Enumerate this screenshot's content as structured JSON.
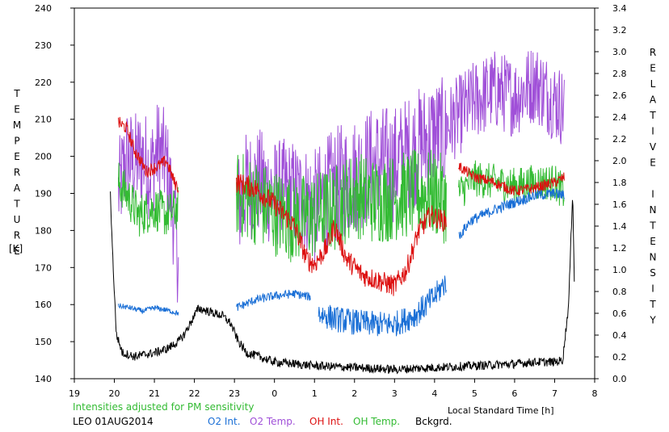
{
  "chart_data": {
    "type": "line",
    "station": "LEO 01AUG2014",
    "note": "Intensities adjusted for PM sensitivity",
    "xlabel": "Local Standard Time [h]",
    "ylabel_left": "TEMPERATURE",
    "ylabel_left_unit": "[K]",
    "ylabel_right": "RELATIVE INTENSITY",
    "x_ticks": [
      "19",
      "20",
      "21",
      "22",
      "23",
      "0",
      "1",
      "2",
      "3",
      "4",
      "5",
      "6",
      "7",
      "8"
    ],
    "x_range": [
      "19:00",
      "08:00"
    ],
    "ylim_left": [
      140,
      240
    ],
    "y_ticks_left": [
      140,
      150,
      160,
      170,
      180,
      190,
      200,
      210,
      220,
      230,
      240
    ],
    "ylim_right": [
      0.0,
      3.4
    ],
    "y_ticks_right": [
      "0.0",
      "0.2",
      "0.4",
      "0.6",
      "0.8",
      "1.0",
      "1.2",
      "1.4",
      "1.6",
      "1.8",
      "2.0",
      "2.2",
      "2.4",
      "2.6",
      "2.8",
      "3.0",
      "3.2",
      "3.4"
    ],
    "grid": false,
    "legend_position": "bottom",
    "legend": [
      {
        "label": "O2 Int.",
        "color": "#1a6fd6"
      },
      {
        "label": "O2 Temp.",
        "color": "#a050d8"
      },
      {
        "label": "OH Int.",
        "color": "#dd1111"
      },
      {
        "label": "OH Temp.",
        "color": "#33bb33"
      },
      {
        "label": "Bckgrd.",
        "color": "#000000"
      }
    ],
    "series": [
      {
        "key": "o2_temp",
        "color": "#a050d8",
        "axis": "left",
        "segments": [
          {
            "start": 20.1,
            "end": 21.6,
            "points": [
              [
                20.1,
                190
              ],
              [
                20.3,
                200
              ],
              [
                20.5,
                198
              ],
              [
                20.7,
                200
              ],
              [
                20.9,
                196
              ],
              [
                21.1,
                202
              ],
              [
                21.3,
                198
              ],
              [
                21.5,
                182
              ],
              [
                21.6,
                172
              ]
            ],
            "noise": 14
          },
          {
            "start": 23.05,
            "end": 24.9,
            "points": [
              [
                23.05,
                185
              ],
              [
                23.3,
                192
              ],
              [
                23.6,
                193
              ],
              [
                24.0,
                190
              ],
              [
                24.4,
                190
              ],
              [
                24.9,
                188
              ]
            ],
            "noise": 15
          },
          {
            "start": 24.9,
            "end": 28.3,
            "points": [
              [
                25.0,
                186
              ],
              [
                25.5,
                192
              ],
              [
                26.0,
                195
              ],
              [
                26.5,
                198
              ],
              [
                27.0,
                198
              ],
              [
                27.5,
                202
              ],
              [
                28.0,
                206
              ],
              [
                28.3,
                205
              ]
            ],
            "noise": 16
          },
          {
            "start": 28.3,
            "end": 31.25,
            "points": [
              [
                28.3,
                208
              ],
              [
                28.7,
                212
              ],
              [
                29.0,
                215
              ],
              [
                29.5,
                218
              ],
              [
                30.0,
                216
              ],
              [
                30.5,
                220
              ],
              [
                31.0,
                215
              ],
              [
                31.25,
                213
              ]
            ],
            "noise": 11
          }
        ]
      },
      {
        "key": "oh_temp",
        "color": "#33bb33",
        "axis": "left",
        "segments": [
          {
            "start": 20.1,
            "end": 21.6,
            "points": [
              [
                20.1,
                193
              ],
              [
                20.3,
                190
              ],
              [
                20.6,
                184
              ],
              [
                21.0,
                186
              ],
              [
                21.3,
                184
              ],
              [
                21.6,
                186
              ]
            ],
            "noise": 6
          },
          {
            "start": 23.05,
            "end": 28.3,
            "points": [
              [
                23.05,
                190
              ],
              [
                23.5,
                188
              ],
              [
                24.0,
                185
              ],
              [
                24.5,
                183
              ],
              [
                25.0,
                184
              ],
              [
                25.5,
                186
              ],
              [
                26.0,
                190
              ],
              [
                26.5,
                188
              ],
              [
                27.0,
                189
              ],
              [
                27.5,
                190
              ],
              [
                28.0,
                190
              ],
              [
                28.3,
                188
              ]
            ],
            "noise": 12
          },
          {
            "start": 28.6,
            "end": 31.25,
            "points": [
              [
                28.6,
                190
              ],
              [
                29.0,
                194
              ],
              [
                29.5,
                193
              ],
              [
                30.0,
                192
              ],
              [
                30.5,
                193
              ],
              [
                31.0,
                193
              ],
              [
                31.25,
                190
              ]
            ],
            "noise": 5
          }
        ]
      },
      {
        "key": "oh_int",
        "color": "#dd1111",
        "axis": "right",
        "segments": [
          {
            "start": 20.1,
            "end": 21.6,
            "points": [
              [
                20.1,
                2.35
              ],
              [
                20.3,
                2.3
              ],
              [
                20.5,
                2.1
              ],
              [
                20.8,
                1.9
              ],
              [
                21.1,
                1.95
              ],
              [
                21.3,
                2.0
              ],
              [
                21.5,
                1.8
              ],
              [
                21.6,
                1.75
              ]
            ],
            "noise": 0.06
          },
          {
            "start": 23.05,
            "end": 28.3,
            "points": [
              [
                23.05,
                1.8
              ],
              [
                23.5,
                1.75
              ],
              [
                24.0,
                1.6
              ],
              [
                24.5,
                1.4
              ],
              [
                24.8,
                1.1
              ],
              [
                25.0,
                1.05
              ],
              [
                25.3,
                1.2
              ],
              [
                25.5,
                1.4
              ],
              [
                25.8,
                1.1
              ],
              [
                26.2,
                0.95
              ],
              [
                26.6,
                0.9
              ],
              [
                27.0,
                0.85
              ],
              [
                27.3,
                1.0
              ],
              [
                27.6,
                1.35
              ],
              [
                27.9,
                1.5
              ],
              [
                28.2,
                1.45
              ]
            ],
            "noise": 0.1
          },
          {
            "start": 28.6,
            "end": 31.25,
            "points": [
              [
                28.6,
                1.95
              ],
              [
                29.0,
                1.85
              ],
              [
                29.5,
                1.8
              ],
              [
                30.0,
                1.72
              ],
              [
                30.5,
                1.75
              ],
              [
                31.0,
                1.8
              ],
              [
                31.25,
                1.85
              ]
            ],
            "noise": 0.05
          }
        ]
      },
      {
        "key": "o2_int",
        "color": "#1a6fd6",
        "axis": "right",
        "segments": [
          {
            "start": 20.1,
            "end": 21.6,
            "points": [
              [
                20.1,
                0.67
              ],
              [
                20.4,
                0.65
              ],
              [
                20.7,
                0.62
              ],
              [
                21.0,
                0.65
              ],
              [
                21.3,
                0.63
              ],
              [
                21.6,
                0.6
              ]
            ],
            "noise": 0.025
          },
          {
            "start": 23.05,
            "end": 24.9,
            "points": [
              [
                23.05,
                0.65
              ],
              [
                23.5,
                0.72
              ],
              [
                24.0,
                0.76
              ],
              [
                24.5,
                0.78
              ],
              [
                24.9,
                0.75
              ]
            ],
            "noise": 0.04
          },
          {
            "start": 25.1,
            "end": 28.3,
            "points": [
              [
                25.1,
                0.6
              ],
              [
                25.5,
                0.55
              ],
              [
                26.0,
                0.52
              ],
              [
                26.5,
                0.5
              ],
              [
                27.0,
                0.5
              ],
              [
                27.5,
                0.58
              ],
              [
                28.0,
                0.75
              ],
              [
                28.3,
                0.9
              ]
            ],
            "noise": 0.12
          },
          {
            "start": 28.6,
            "end": 31.25,
            "points": [
              [
                28.6,
                1.3
              ],
              [
                28.9,
                1.45
              ],
              [
                29.2,
                1.5
              ],
              [
                29.5,
                1.55
              ],
              [
                30.0,
                1.62
              ],
              [
                30.5,
                1.68
              ],
              [
                31.0,
                1.7
              ],
              [
                31.25,
                1.68
              ]
            ],
            "noise": 0.05
          }
        ]
      },
      {
        "key": "bckgrd",
        "color": "#000000",
        "axis": "left",
        "segments": [
          {
            "start": 19.9,
            "end": 31.5,
            "points": [
              [
                19.9,
                190
              ],
              [
                19.95,
                175
              ],
              [
                20.05,
                152
              ],
              [
                20.2,
                147
              ],
              [
                20.5,
                146
              ],
              [
                21.0,
                147
              ],
              [
                21.3,
                148
              ],
              [
                21.6,
                150
              ],
              [
                21.75,
                152
              ],
              [
                21.9,
                155
              ],
              [
                22.1,
                159
              ],
              [
                22.4,
                158
              ],
              [
                22.7,
                157
              ],
              [
                22.9,
                155
              ],
              [
                23.1,
                150
              ],
              [
                23.3,
                147
              ],
              [
                23.6,
                146
              ],
              [
                24.0,
                144.5
              ],
              [
                24.5,
                144
              ],
              [
                25.0,
                143.5
              ],
              [
                26.0,
                143
              ],
              [
                27.0,
                142.5
              ],
              [
                28.0,
                143
              ],
              [
                29.0,
                143.5
              ],
              [
                30.0,
                144
              ],
              [
                30.5,
                144.5
              ],
              [
                31.0,
                144.5
              ],
              [
                31.2,
                145
              ],
              [
                31.35,
                160
              ],
              [
                31.45,
                191
              ],
              [
                31.5,
                162
              ]
            ],
            "noise": 1.2
          }
        ]
      }
    ]
  }
}
